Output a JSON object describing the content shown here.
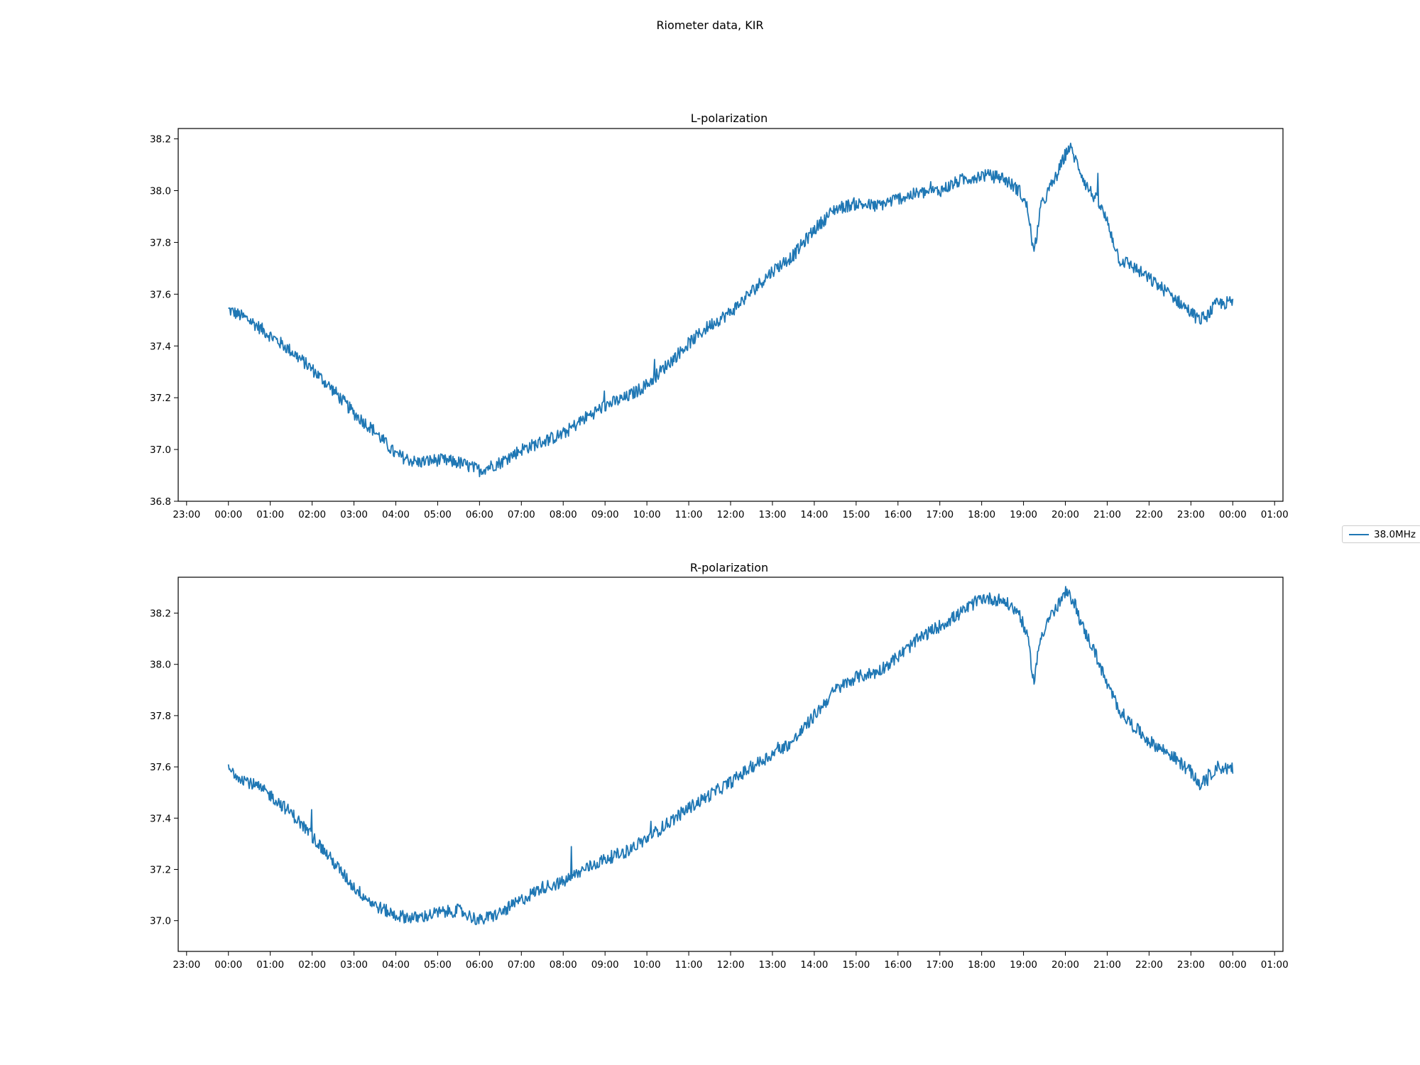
{
  "figure": {
    "title": "Riometer data, KIR",
    "legend": {
      "label": "38.0MHz",
      "color": "#1f77b4",
      "placement": "right"
    }
  },
  "chart_data": [
    {
      "type": "line",
      "title": "L-polarization",
      "xlabel": "",
      "ylabel": "",
      "x_unit": "hours",
      "xlim": [
        -1.2,
        25.2
      ],
      "ylim": [
        36.8,
        38.24
      ],
      "xticks": [
        -1,
        0,
        1,
        2,
        3,
        4,
        5,
        6,
        7,
        8,
        9,
        10,
        11,
        12,
        13,
        14,
        15,
        16,
        17,
        18,
        19,
        20,
        21,
        22,
        23,
        24,
        25
      ],
      "xtick_labels": [
        "23:00",
        "00:00",
        "01:00",
        "02:00",
        "03:00",
        "04:00",
        "05:00",
        "06:00",
        "07:00",
        "08:00",
        "09:00",
        "10:00",
        "11:00",
        "12:00",
        "13:00",
        "14:00",
        "15:00",
        "16:00",
        "17:00",
        "18:00",
        "19:00",
        "20:00",
        "21:00",
        "22:00",
        "23:00",
        "00:00",
        "01:00"
      ],
      "yticks": [
        36.8,
        37.0,
        37.2,
        37.4,
        37.6,
        37.8,
        38.0,
        38.2
      ],
      "ytick_labels": [
        "36.8",
        "37.0",
        "37.2",
        "37.4",
        "37.6",
        "37.8",
        "38.0",
        "38.2"
      ],
      "series": [
        {
          "name": "38.0MHz",
          "color": "#1f77b4",
          "x": [
            0,
            0.5,
            1.0,
            1.5,
            2.0,
            2.5,
            3.0,
            3.5,
            4.0,
            4.5,
            5.0,
            5.5,
            6.0,
            6.5,
            7.0,
            7.5,
            8.0,
            8.5,
            9.0,
            9.5,
            10.0,
            10.5,
            11.0,
            11.5,
            12.0,
            12.5,
            13.0,
            13.5,
            14.0,
            14.5,
            15.0,
            15.5,
            16.0,
            16.5,
            17.0,
            17.5,
            18.0,
            18.5,
            18.9,
            19.1,
            19.25,
            19.4,
            19.6,
            19.8,
            20.0,
            20.1,
            20.3,
            20.5,
            20.8,
            21.0,
            21.3,
            21.5,
            22.0,
            22.5,
            23.0,
            23.2,
            23.4,
            23.6,
            24.0
          ],
          "y": [
            37.54,
            37.5,
            37.44,
            37.38,
            37.31,
            37.23,
            37.14,
            37.07,
            36.98,
            36.95,
            36.96,
            36.95,
            36.92,
            36.95,
            37.0,
            37.03,
            37.06,
            37.12,
            37.17,
            37.2,
            37.25,
            37.33,
            37.41,
            37.48,
            37.53,
            37.61,
            37.69,
            37.75,
            37.85,
            37.93,
            37.95,
            37.94,
            37.97,
            37.99,
            38.0,
            38.04,
            38.06,
            38.05,
            38.0,
            37.93,
            37.75,
            37.93,
            38.0,
            38.06,
            38.14,
            38.17,
            38.1,
            38.02,
            37.95,
            37.88,
            37.73,
            37.72,
            37.66,
            37.6,
            37.53,
            37.5,
            37.52,
            37.56,
            37.57
          ]
        }
      ]
    },
    {
      "type": "line",
      "title": "R-polarization",
      "xlabel": "",
      "ylabel": "",
      "x_unit": "hours",
      "xlim": [
        -1.2,
        25.2
      ],
      "ylim": [
        36.88,
        38.34
      ],
      "xticks": [
        -1,
        0,
        1,
        2,
        3,
        4,
        5,
        6,
        7,
        8,
        9,
        10,
        11,
        12,
        13,
        14,
        15,
        16,
        17,
        18,
        19,
        20,
        21,
        22,
        23,
        24,
        25
      ],
      "xtick_labels": [
        "23:00",
        "00:00",
        "01:00",
        "02:00",
        "03:00",
        "04:00",
        "05:00",
        "06:00",
        "07:00",
        "08:00",
        "09:00",
        "10:00",
        "11:00",
        "12:00",
        "13:00",
        "14:00",
        "15:00",
        "16:00",
        "17:00",
        "18:00",
        "19:00",
        "20:00",
        "21:00",
        "22:00",
        "23:00",
        "00:00",
        "01:00"
      ],
      "yticks": [
        37.0,
        37.2,
        37.4,
        37.6,
        37.8,
        38.0,
        38.2
      ],
      "ytick_labels": [
        "37.0",
        "37.2",
        "37.4",
        "37.6",
        "37.8",
        "38.0",
        "38.2"
      ],
      "series": [
        {
          "name": "38.0MHz",
          "color": "#1f77b4",
          "x": [
            0,
            0.5,
            1.0,
            1.5,
            2.0,
            2.5,
            3.0,
            3.5,
            4.0,
            4.5,
            5.0,
            5.5,
            6.0,
            6.5,
            7.0,
            7.5,
            8.0,
            8.5,
            9.0,
            9.5,
            10.0,
            10.5,
            11.0,
            11.5,
            12.0,
            12.5,
            13.0,
            13.5,
            14.0,
            14.5,
            15.0,
            15.5,
            16.0,
            16.5,
            17.0,
            17.5,
            18.0,
            18.5,
            18.9,
            19.1,
            19.25,
            19.4,
            19.6,
            19.8,
            20.0,
            20.2,
            20.4,
            20.7,
            21.0,
            21.3,
            21.5,
            22.0,
            22.5,
            23.0,
            23.2,
            23.4,
            23.6,
            24.0
          ],
          "y": [
            37.59,
            37.54,
            37.49,
            37.42,
            37.33,
            37.23,
            37.13,
            37.06,
            37.02,
            37.01,
            37.03,
            37.04,
            37.0,
            37.03,
            37.08,
            37.13,
            37.15,
            37.2,
            37.24,
            37.27,
            37.32,
            37.38,
            37.44,
            37.49,
            37.54,
            37.6,
            37.65,
            37.7,
            37.8,
            37.9,
            37.95,
            37.97,
            38.03,
            38.1,
            38.15,
            38.2,
            38.26,
            38.25,
            38.2,
            38.1,
            37.93,
            38.1,
            38.18,
            38.22,
            38.28,
            38.25,
            38.15,
            38.05,
            37.92,
            37.82,
            37.78,
            37.7,
            37.65,
            37.58,
            37.53,
            37.55,
            37.6,
            37.59
          ]
        }
      ]
    }
  ]
}
